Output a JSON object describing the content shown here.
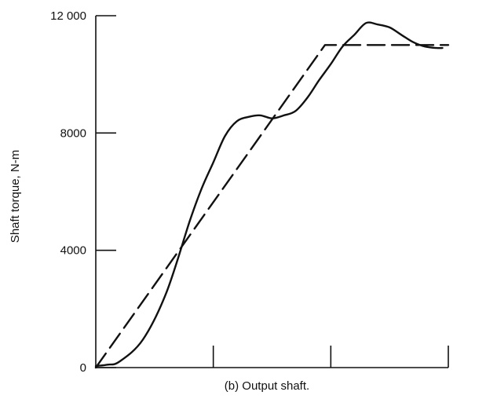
{
  "chart_data": {
    "type": "line",
    "xlabel": "",
    "ylabel": "Shaft torque, N-m",
    "caption": "(b) Output shaft.",
    "xlim": [
      0,
      3
    ],
    "ylim": [
      0,
      12000
    ],
    "x_ticks": [
      1,
      2,
      3
    ],
    "y_ticks": [
      {
        "value": 0,
        "label": "0"
      },
      {
        "value": 4000,
        "label": "4000"
      },
      {
        "value": 8000,
        "label": "8000"
      },
      {
        "value": 12000,
        "label": "12 000"
      }
    ],
    "grid": false,
    "series": [
      {
        "style": "solid",
        "color": "#111111",
        "x": [
          0.0,
          0.1,
          0.2,
          0.4,
          0.6,
          0.8,
          0.9,
          1.0,
          1.1,
          1.2,
          1.3,
          1.4,
          1.5,
          1.6,
          1.7,
          1.8,
          1.9,
          2.0,
          2.1,
          2.2,
          2.3,
          2.4,
          2.5,
          2.6,
          2.7,
          2.8,
          2.9,
          2.95
        ],
        "y": [
          50,
          100,
          200,
          950,
          2550,
          5000,
          6100,
          7000,
          7900,
          8400,
          8550,
          8600,
          8500,
          8600,
          8750,
          9200,
          9800,
          10350,
          10950,
          11350,
          11750,
          11700,
          11600,
          11350,
          11100,
          10950,
          10900,
          10900
        ]
      },
      {
        "style": "dashed",
        "color": "#111111",
        "x": [
          0.0,
          1.95,
          3.0
        ],
        "y": [
          0,
          11000,
          11000
        ]
      }
    ]
  }
}
